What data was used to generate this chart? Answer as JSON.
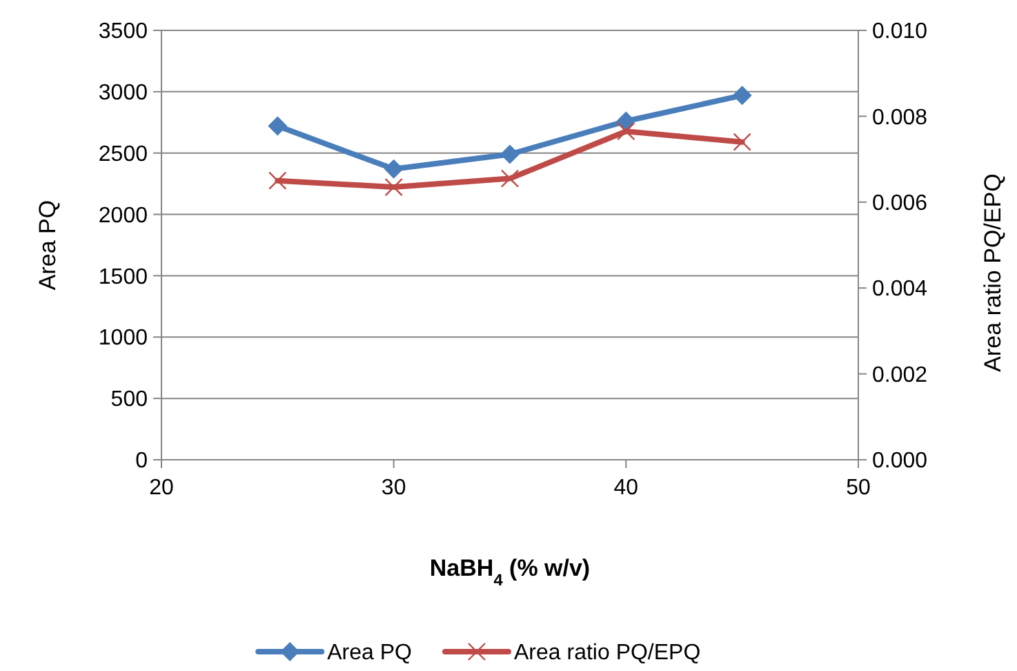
{
  "chart_data": {
    "type": "line",
    "xlabel": "NaBH$_{4}$ (% w/v)",
    "ylabel": "Area PQ",
    "y2label": "Area ratio PQ/EPQ",
    "x": [
      25,
      30,
      35,
      40,
      45
    ],
    "series": [
      {
        "name": "Area PQ",
        "color": "#4a7ebb",
        "values": [
          2720,
          2370,
          2490,
          2760,
          2970
        ],
        "marker": "diamond"
      },
      {
        "name": "Area ratio PQ/EPQ",
        "color": "#be4b48",
        "values": [
          0.0065,
          0.00635,
          0.00655,
          0.00765,
          0.0074
        ],
        "marker": "cross",
        "axis": "y2"
      }
    ],
    "xlim": [
      20,
      50
    ],
    "xticks": [
      20,
      30,
      40,
      50
    ],
    "ylim": [
      0,
      3500
    ],
    "yticks": [
      0,
      500,
      1000,
      1500,
      2000,
      2500,
      3000,
      3500
    ],
    "y2lim": [
      0,
      0.01
    ],
    "y2ticks": [
      {
        "value": 0,
        "label": "0.000"
      },
      {
        "value": 0.002,
        "label": "0.002"
      },
      {
        "value": 0.004,
        "label": "0.004"
      },
      {
        "value": 0.006,
        "label": "0.006"
      },
      {
        "value": 0.008,
        "label": "0.008"
      },
      {
        "value": 0.01,
        "label": "0.010"
      }
    ],
    "grid": "y",
    "legend": "bottom",
    "line_style": "solid"
  }
}
